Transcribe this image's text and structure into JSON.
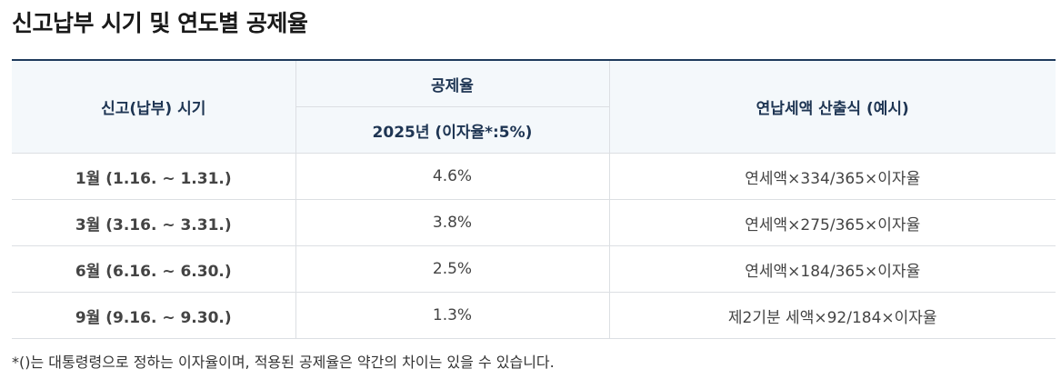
{
  "title": "신고납부 시기 및 연도별 공제율",
  "table": {
    "headers": {
      "period": "신고(납부) 시기",
      "rate_group": "공제율",
      "rate_year": "2025년 (이자율*:5%)",
      "formula": "연납세액 산출식 (예시)"
    },
    "rows": [
      {
        "period": "1월 (1.16. ~ 1.31.)",
        "rate": "4.6%",
        "formula": "연세액×334/365×이자율"
      },
      {
        "period": "3월 (3.16. ~ 3.31.)",
        "rate": "3.8%",
        "formula": "연세액×275/365×이자율"
      },
      {
        "period": "6월 (6.16. ~ 6.30.)",
        "rate": "2.5%",
        "formula": "연세액×184/365×이자율"
      },
      {
        "period": "9월 (9.16. ~ 9.30.)",
        "rate": "1.3%",
        "formula": "제2기분 세액×92/184×이자율"
      }
    ]
  },
  "footnote": "*()는 대통령령으로 정하는 이자율이며, 적용된 공제율은 약간의 차이는 있을 수 있습니다."
}
